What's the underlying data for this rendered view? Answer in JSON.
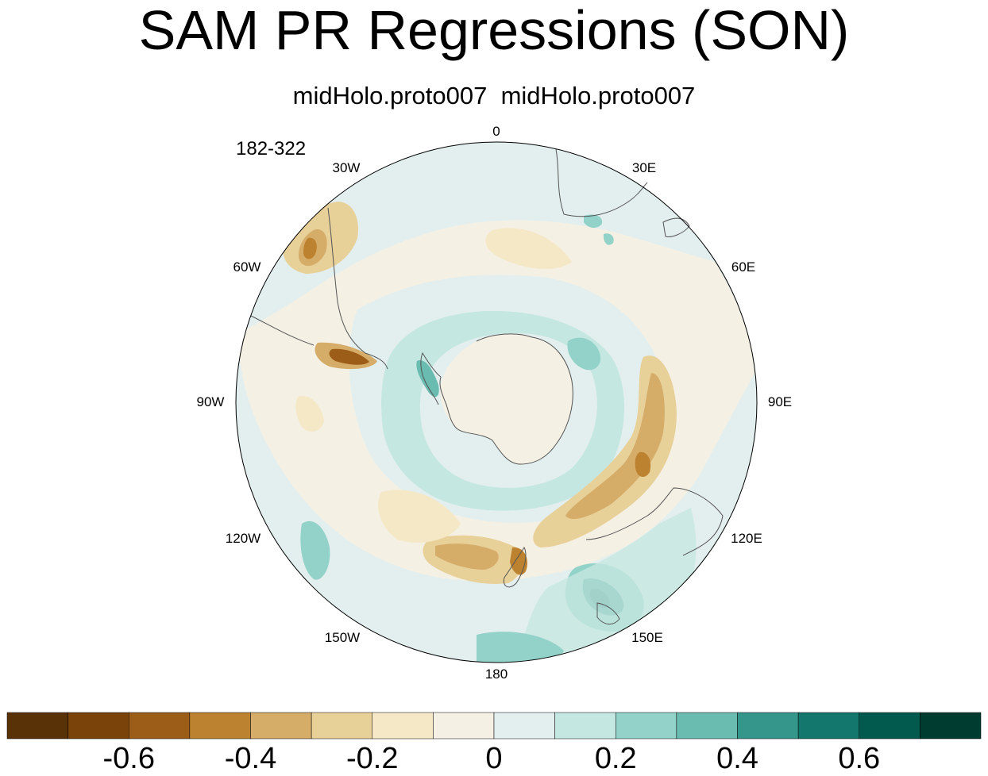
{
  "title": "SAM PR Regressions (SON)",
  "subtitle": "midHolo.proto007  midHolo.proto007",
  "year_range": "182-322",
  "longitude_labels": {
    "lon_0": "0",
    "lon_30e": "30E",
    "lon_60e": "60E",
    "lon_90e": "90E",
    "lon_120e": "120E",
    "lon_150e": "150E",
    "lon_180": "180",
    "lon_150w": "150W",
    "lon_120w": "120W",
    "lon_90w": "90W",
    "lon_60w": "60W",
    "lon_30w": "30W"
  },
  "map": {
    "projection": "south-polar-stereographic",
    "background_fill": "#e3efef",
    "land_outline_color": "#555555"
  },
  "colorbar": {
    "colors": [
      "#5a3208",
      "#7a4309",
      "#9c5d18",
      "#bd822f",
      "#d5ac68",
      "#e8d099",
      "#f5e8c7",
      "#f5f0e4",
      "#e3efef",
      "#c5e7e1",
      "#93d2c8",
      "#6abbb0",
      "#35968c",
      "#14776d",
      "#025a4e",
      "#003c30"
    ],
    "labels": [
      "-0.6",
      "-0.4",
      "-0.2",
      "0",
      "0.2",
      "0.4",
      "0.6"
    ]
  }
}
